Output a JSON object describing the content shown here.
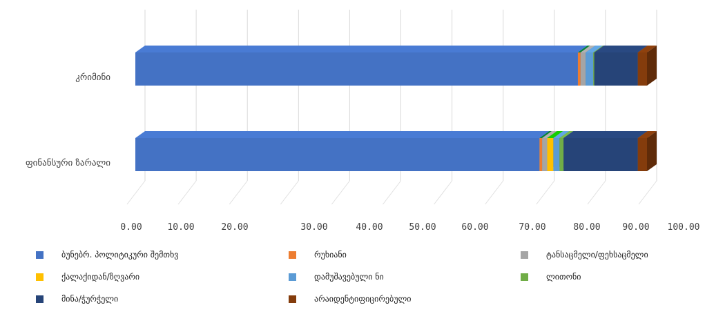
{
  "chart_data": {
    "type": "bar",
    "orientation": "horizontal",
    "stacked": true,
    "style": "3d",
    "categories": [
      "კრიმინი",
      "ფინანსური ზარალი"
    ],
    "series": [
      {
        "name": "ბუნებრ. პოლიტიკური შემთხვ",
        "color": "#4472C4",
        "values": [
          86.5,
          79.0
        ]
      },
      {
        "name": "რუხიანი",
        "color": "#ED7D31",
        "values": [
          0.5,
          0.5
        ]
      },
      {
        "name": "ტანსაცმელი/ფეხსაცმელი",
        "color": "#A5A5A5",
        "values": [
          1.0,
          1.0
        ]
      },
      {
        "name": "ქალაქიდან/ზღვარი",
        "color": "#FFC000",
        "values": [
          0.0,
          1.2
        ]
      },
      {
        "name": "დამუშავებული ნი",
        "color": "#5B9BD5",
        "values": [
          1.5,
          1.2
        ]
      },
      {
        "name": "ლითონი",
        "color": "#70AD47",
        "values": [
          0.2,
          0.8
        ]
      },
      {
        "name": "მინა/ჭურჭელი",
        "color": "#264478",
        "values": [
          8.5,
          14.5
        ]
      },
      {
        "name": "არაიდენტიფიცირებული",
        "color": "#843C0C",
        "values": [
          1.8,
          1.8
        ]
      }
    ],
    "xlim": [
      0,
      100
    ],
    "ticks": [
      "0.00",
      "10.00",
      "20.00",
      "30.00",
      "40.00",
      "50.00",
      "60.00",
      "70.00",
      "80.00",
      "90.00",
      "100.00"
    ],
    "grid": true,
    "legend_position": "bottom"
  }
}
